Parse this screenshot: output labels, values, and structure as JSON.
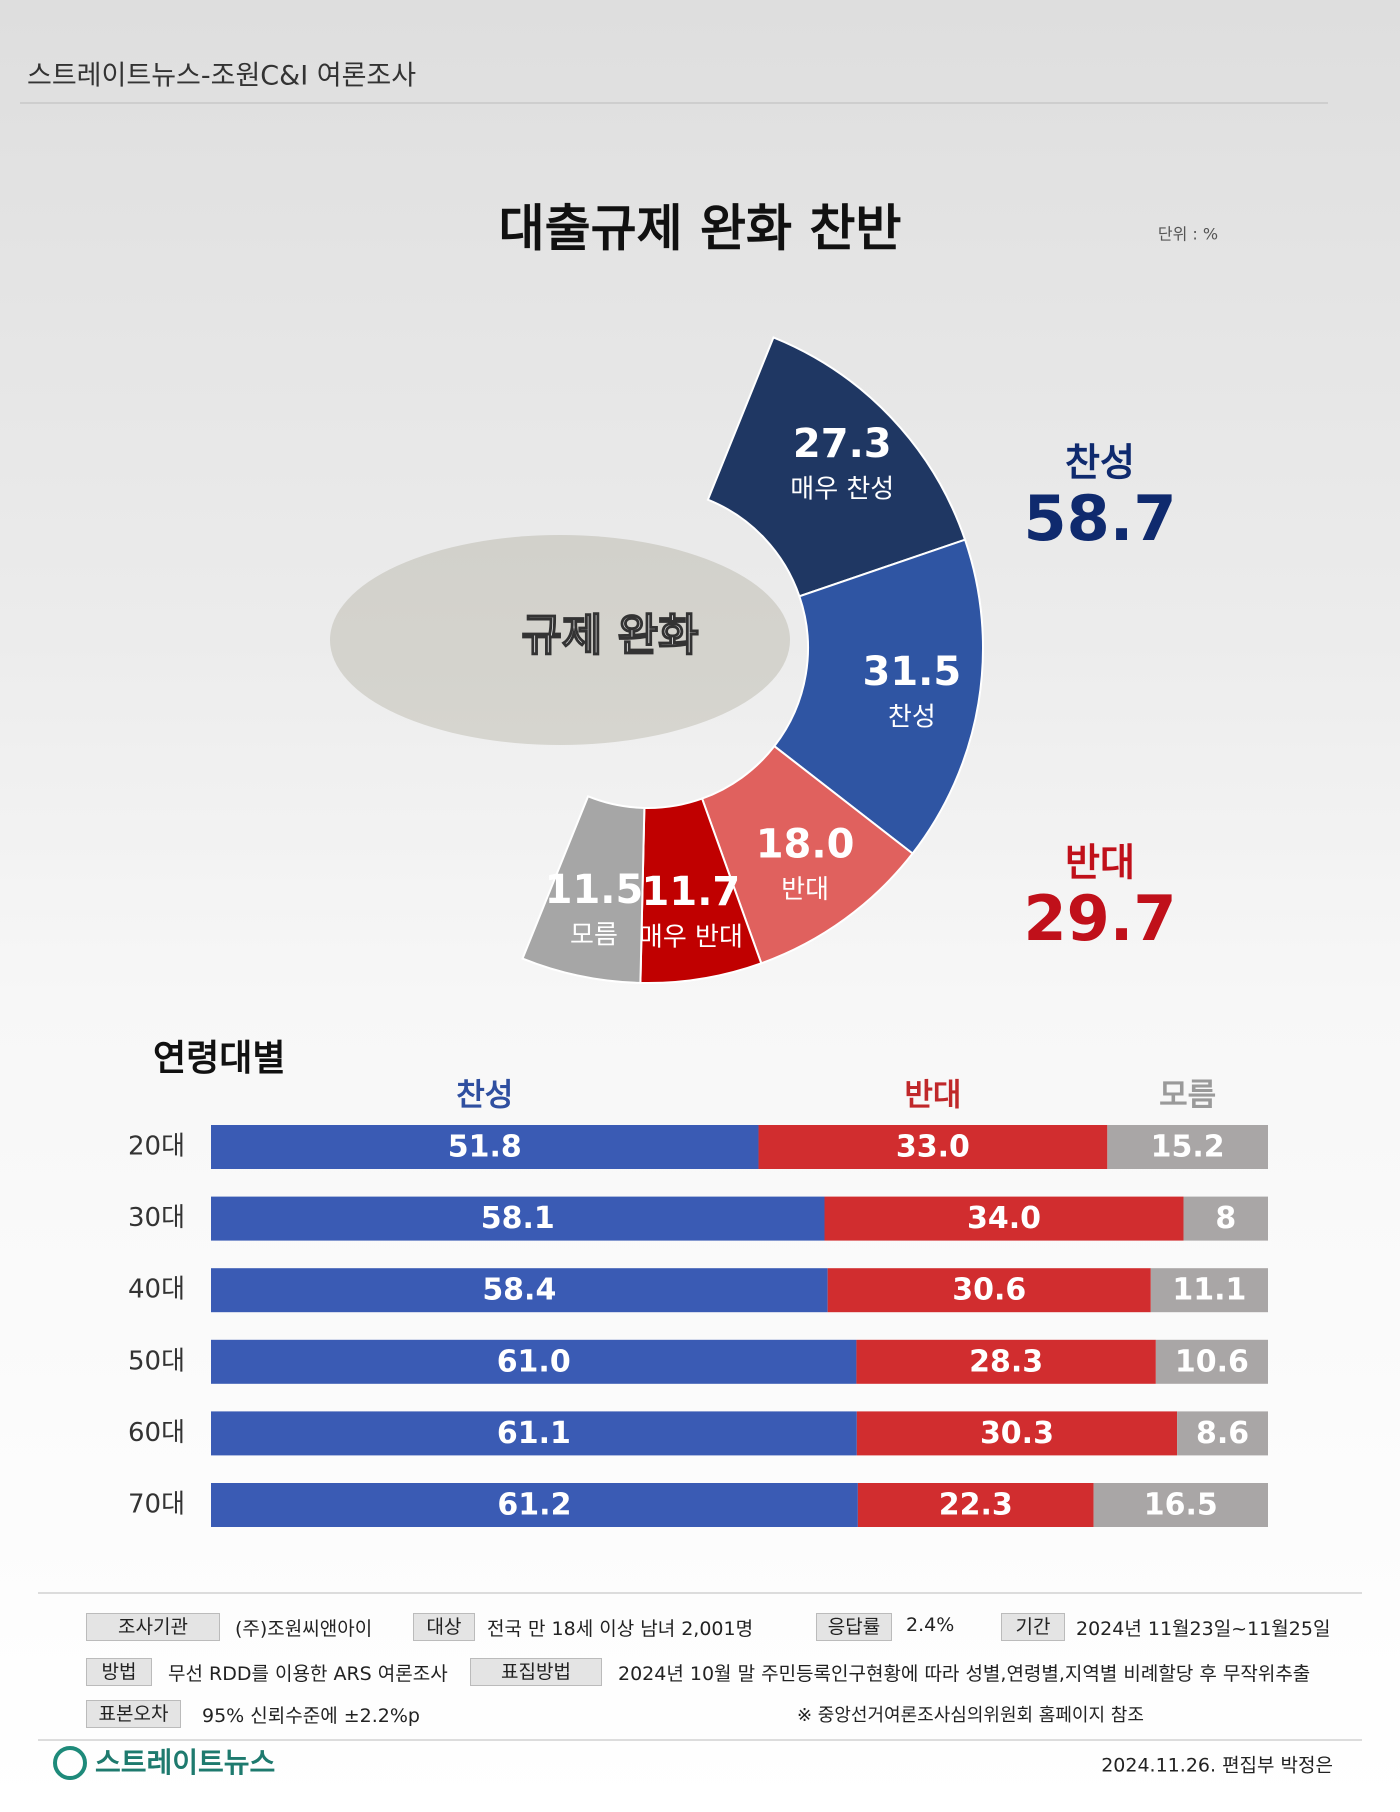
{
  "header": {
    "source": "스트레이트뉴스-조원C&I 여론조사"
  },
  "chart_data": [
    {
      "type": "donut",
      "title": "대출규제 완화 찬반",
      "unit_note": "단위 : %",
      "center_label": "규제 완화",
      "categories": [
        "매우 찬성",
        "찬성",
        "반대",
        "매우 반대",
        "모름"
      ],
      "values": [
        27.3,
        31.5,
        18.0,
        11.7,
        11.5
      ],
      "value_labels": [
        "27.3",
        "31.5",
        "18.0",
        "11.7",
        "11.5"
      ],
      "colors": [
        "#1f3763",
        "#2f55a3",
        "#e0615e",
        "#c00000",
        "#a6a6a6"
      ],
      "annotations": [
        {
          "text": "찬성",
          "value": 58.7,
          "color": "#0f2a6e"
        },
        {
          "text": "반대",
          "value": 29.7,
          "color": "#c0101a"
        }
      ]
    },
    {
      "type": "stacked-bar",
      "title": "연령대별",
      "orientation": "horizontal",
      "categories": [
        "20대",
        "30대",
        "40대",
        "50대",
        "60대",
        "70대"
      ],
      "series": [
        {
          "name": "찬성",
          "color": "#3a5bb4",
          "legend_color": "#2f4fa0",
          "values": [
            51.8,
            58.1,
            58.4,
            61.0,
            61.1,
            61.2
          ],
          "value_labels": [
            "51.8",
            "58.1",
            "58.4",
            "61.0",
            "61.1",
            "61.2"
          ]
        },
        {
          "name": "반대",
          "color": "#d12d2f",
          "legend_color": "#c0282a",
          "values": [
            33.0,
            34.0,
            30.6,
            28.3,
            30.3,
            22.3
          ],
          "value_labels": [
            "33.0",
            "34.0",
            "30.6",
            "28.3",
            "30.3",
            "22.3"
          ]
        },
        {
          "name": "모름",
          "color": "#a9a6a6",
          "legend_color": "#9a9a9a",
          "values": [
            15.2,
            8,
            11.1,
            10.6,
            8.6,
            16.5
          ],
          "value_labels": [
            "15.2",
            "8",
            "11.1",
            "10.6",
            "8.6",
            "16.5"
          ]
        }
      ]
    }
  ],
  "footer": {
    "info": [
      {
        "label": "조사기관",
        "value": "(주)조원씨앤아이"
      },
      {
        "label": "대상",
        "value": "전국 만 18세 이상 남녀 2,001명"
      },
      {
        "label": "응답률",
        "value": "2.4%"
      },
      {
        "label": "기간",
        "value": "2024년 11월23일~11월25일"
      },
      {
        "label": "방법",
        "value": "무선 RDD를 이용한 ARS 여론조사"
      },
      {
        "label": "표집방법",
        "value": "2024년 10월 말 주민등록인구현황에 따라 성별,연령별,지역별 비례할당 후 무작위추출"
      },
      {
        "label": "표본오차",
        "value": "95% 신뢰수준에 ±2.2%p"
      }
    ],
    "note": "※ 중앙선거여론조사심의위원회 홈페이지 참조",
    "logo": "스트레이트뉴스",
    "credit": "2024.11.26. 편집부 박정은"
  }
}
